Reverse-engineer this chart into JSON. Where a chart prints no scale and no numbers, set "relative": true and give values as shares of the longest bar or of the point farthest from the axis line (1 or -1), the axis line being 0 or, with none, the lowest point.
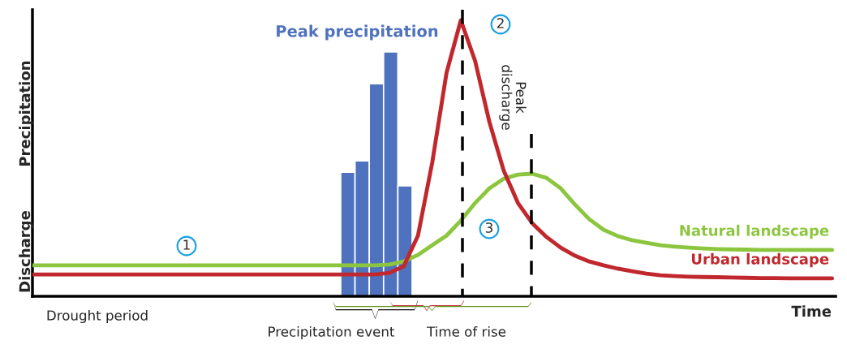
{
  "chart_data": [
    {
      "type": "bar",
      "relative": true,
      "categories": [
        null,
        null,
        null,
        null,
        null
      ],
      "series": [
        {
          "color": "#4f72be",
          "values": [
            0.508,
            0.554,
            0.87,
            1,
            0.452
          ]
        }
      ],
      "annotations": [
        "Peak precipitation",
        "Precipitation event"
      ]
    },
    {
      "type": "line",
      "relative": true,
      "xlabel": "Time",
      "ylabel": "Discharge",
      "marker": "none",
      "line_style": "solid",
      "categories": [
        null,
        null,
        null,
        null,
        null,
        null,
        null,
        null,
        null,
        null,
        null,
        null,
        null,
        null,
        null,
        null,
        null,
        null,
        null,
        null,
        null,
        null,
        null,
        null,
        null,
        null,
        null,
        null,
        null,
        null,
        null,
        null,
        null,
        null,
        null,
        null,
        null,
        null,
        null,
        null,
        null,
        null,
        null,
        null,
        null,
        null,
        null,
        null,
        null,
        null,
        null,
        null,
        null,
        null,
        null,
        null,
        null
      ],
      "series": [
        {
          "name": "Natural landscape",
          "color": "#8cc63f",
          "values": [
            0.112,
            0.112,
            0.112,
            0.112,
            0.112,
            0.112,
            0.112,
            0.112,
            0.112,
            0.112,
            0.112,
            0.112,
            0.112,
            0.112,
            0.112,
            0.112,
            0.112,
            0.112,
            0.112,
            0.112,
            0.112,
            0.112,
            0.112,
            0.112,
            0.112,
            0.115,
            0.126,
            0.15,
            0.185,
            0.22,
            0.274,
            0.338,
            0.391,
            0.426,
            0.441,
            0.444,
            0.429,
            0.391,
            0.332,
            0.279,
            0.241,
            0.218,
            0.203,
            0.194,
            0.185,
            0.18,
            0.176,
            0.173,
            0.171,
            0.17,
            0.169,
            0.168,
            0.168,
            0.168,
            0.168,
            0.168,
            0.168
          ]
        },
        {
          "name": "Urban landscape",
          "color": "#c0282d",
          "values": [
            0.079,
            0.079,
            0.079,
            0.079,
            0.079,
            0.079,
            0.079,
            0.079,
            0.079,
            0.079,
            0.079,
            0.079,
            0.079,
            0.079,
            0.079,
            0.079,
            0.079,
            0.079,
            0.079,
            0.079,
            0.079,
            0.079,
            0.079,
            0.079,
            0.079,
            0.085,
            0.109,
            0.22,
            0.485,
            0.81,
            1.0,
            0.853,
            0.632,
            0.456,
            0.338,
            0.265,
            0.215,
            0.176,
            0.147,
            0.126,
            0.112,
            0.1,
            0.091,
            0.082,
            0.076,
            0.073,
            0.071,
            0.07,
            0.069,
            0.068,
            0.067,
            0.066,
            0.066,
            0.065,
            0.065,
            0.065,
            0.065
          ]
        }
      ],
      "annotations": [
        "1",
        "2",
        "3",
        "Precipitation",
        "Drought period",
        "Time of rise",
        "Peak discharge"
      ]
    }
  ]
}
